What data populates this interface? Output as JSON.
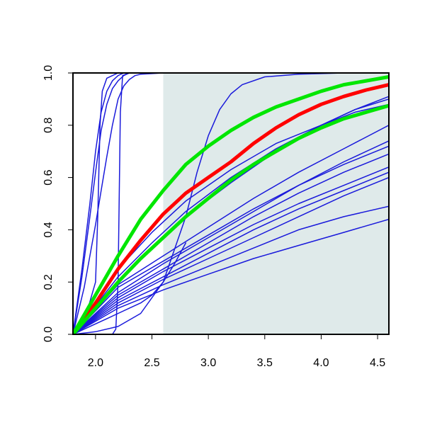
{
  "chart_data": {
    "type": "line",
    "title": "",
    "xlabel": "",
    "ylabel": "",
    "xlim": [
      1.8,
      4.6
    ],
    "ylim": [
      0,
      1
    ],
    "x_ticks": [
      2.0,
      2.5,
      3.0,
      3.5,
      4.0,
      4.5
    ],
    "x_tick_labels": [
      "2.0",
      "2.5",
      "3.0",
      "3.5",
      "4.0",
      "4.5"
    ],
    "y_ticks": [
      0,
      0.2,
      0.4,
      0.6,
      0.8,
      1.0
    ],
    "y_tick_labels": [
      "0.0",
      "0.2",
      "0.4",
      "0.6",
      "0.8",
      "1.0"
    ],
    "grid": false,
    "legend": "none",
    "shaded_region": {
      "x": [
        2.6,
        4.6
      ],
      "color": "#dfeaea"
    },
    "colors": {
      "blue": "#1a1adb",
      "red": "#ff0000",
      "green": "#00e600",
      "axis": "#000000"
    },
    "series": [
      {
        "color": "blue",
        "width": 1.5,
        "x": [
          1.8,
          1.88,
          1.95,
          2.0,
          2.05,
          2.1,
          2.15,
          2.2,
          2.25,
          2.3,
          2.4,
          2.6,
          4.6
        ],
        "y": [
          0.0,
          0.25,
          0.5,
          0.7,
          0.85,
          0.93,
          0.97,
          0.99,
          1.0,
          1.0,
          1.0,
          1.0,
          1.0
        ]
      },
      {
        "color": "blue",
        "width": 1.5,
        "x": [
          1.8,
          1.88,
          1.95,
          2.0,
          2.05,
          2.1,
          2.15,
          2.2,
          2.25,
          2.3,
          2.4,
          2.6,
          4.6
        ],
        "y": [
          0.0,
          0.22,
          0.45,
          0.62,
          0.78,
          0.88,
          0.94,
          0.97,
          0.99,
          1.0,
          1.0,
          1.0,
          1.0
        ]
      },
      {
        "color": "blue",
        "width": 1.5,
        "x": [
          1.8,
          1.9,
          2.0,
          2.05,
          2.1,
          2.15,
          2.2,
          2.25,
          2.3,
          2.35,
          2.4,
          2.6,
          4.6
        ],
        "y": [
          0.0,
          0.18,
          0.42,
          0.55,
          0.68,
          0.8,
          0.9,
          0.95,
          0.975,
          0.99,
          0.995,
          1.0,
          1.0
        ]
      },
      {
        "color": "blue",
        "width": 1.5,
        "x": [
          1.8,
          1.9,
          2.0,
          2.02,
          2.04,
          2.06,
          2.1,
          2.15,
          2.2,
          2.3,
          4.6
        ],
        "y": [
          0.0,
          0.05,
          0.2,
          0.45,
          0.8,
          0.93,
          0.98,
          0.99,
          1.0,
          1.0,
          1.0
        ]
      },
      {
        "color": "blue",
        "width": 1.5,
        "x": [
          1.8,
          2.0,
          2.15,
          2.18,
          2.2,
          2.22,
          2.24,
          2.3,
          4.6
        ],
        "y": [
          0.0,
          0.0,
          0.0,
          0.02,
          0.2,
          0.85,
          0.99,
          1.0,
          1.0
        ]
      },
      {
        "color": "blue",
        "width": 1.5,
        "x": [
          1.8,
          2.0,
          2.2,
          2.4,
          2.6,
          2.8,
          2.9,
          3.0,
          3.1,
          3.2,
          3.3,
          3.5,
          3.8,
          4.2,
          4.6
        ],
        "y": [
          0.0,
          0.01,
          0.03,
          0.08,
          0.2,
          0.45,
          0.62,
          0.76,
          0.86,
          0.92,
          0.955,
          0.985,
          0.995,
          1.0,
          1.0
        ]
      },
      {
        "color": "blue",
        "width": 1.5,
        "x": [
          1.8,
          2.2,
          2.5,
          2.8,
          3.2,
          3.6,
          4.0,
          4.3,
          4.6
        ],
        "y": [
          0.0,
          0.25,
          0.39,
          0.51,
          0.63,
          0.73,
          0.8,
          0.85,
          0.88
        ]
      },
      {
        "color": "blue",
        "width": 1.5,
        "x": [
          1.8,
          2.2,
          2.5,
          2.8,
          3.2,
          3.6,
          4.0,
          4.3,
          4.6
        ],
        "y": [
          0.0,
          0.22,
          0.35,
          0.47,
          0.6,
          0.71,
          0.8,
          0.86,
          0.9
        ]
      },
      {
        "color": "blue",
        "width": 1.5,
        "x": [
          1.8,
          2.2,
          2.5,
          2.8,
          3.2,
          3.6,
          4.0,
          4.3,
          4.6
        ],
        "y": [
          0.0,
          0.2,
          0.33,
          0.45,
          0.58,
          0.7,
          0.8,
          0.86,
          0.91
        ]
      },
      {
        "color": "blue",
        "width": 1.5,
        "x": [
          1.8,
          2.2,
          2.6,
          3.0,
          3.4,
          3.8,
          4.2,
          4.6
        ],
        "y": [
          0.0,
          0.19,
          0.3,
          0.41,
          0.52,
          0.62,
          0.71,
          0.8
        ]
      },
      {
        "color": "blue",
        "width": 1.5,
        "x": [
          1.8,
          2.2,
          2.6,
          3.0,
          3.4,
          3.8,
          4.2,
          4.6
        ],
        "y": [
          0.0,
          0.16,
          0.27,
          0.37,
          0.47,
          0.57,
          0.66,
          0.74
        ]
      },
      {
        "color": "blue",
        "width": 1.5,
        "x": [
          1.8,
          2.2,
          2.6,
          3.0,
          3.4,
          3.8,
          4.2,
          4.6
        ],
        "y": [
          0.0,
          0.18,
          0.28,
          0.38,
          0.48,
          0.57,
          0.65,
          0.72
        ]
      },
      {
        "color": "blue",
        "width": 1.5,
        "x": [
          1.8,
          2.2,
          2.6,
          3.0,
          3.4,
          3.8,
          4.2,
          4.6
        ],
        "y": [
          0.0,
          0.15,
          0.25,
          0.35,
          0.45,
          0.54,
          0.62,
          0.69
        ]
      },
      {
        "color": "blue",
        "width": 1.5,
        "x": [
          1.8,
          2.2,
          2.6,
          3.0,
          3.4,
          3.8,
          4.2,
          4.6
        ],
        "y": [
          0.0,
          0.14,
          0.24,
          0.33,
          0.42,
          0.5,
          0.57,
          0.64
        ]
      },
      {
        "color": "blue",
        "width": 1.5,
        "x": [
          1.8,
          2.2,
          2.6,
          3.0,
          3.4,
          3.8,
          4.2,
          4.6
        ],
        "y": [
          0.0,
          0.13,
          0.22,
          0.31,
          0.4,
          0.48,
          0.55,
          0.62
        ]
      },
      {
        "color": "blue",
        "width": 1.5,
        "x": [
          1.8,
          2.2,
          2.6,
          3.0,
          3.4,
          3.8,
          4.2,
          4.6
        ],
        "y": [
          0.0,
          0.12,
          0.21,
          0.29,
          0.37,
          0.45,
          0.53,
          0.6
        ]
      },
      {
        "color": "blue",
        "width": 1.5,
        "x": [
          1.8,
          2.2,
          2.6,
          3.0,
          3.4,
          3.8,
          4.2,
          4.6
        ],
        "y": [
          0.0,
          0.11,
          0.19,
          0.26,
          0.33,
          0.4,
          0.45,
          0.49
        ]
      },
      {
        "color": "blue",
        "width": 1.5,
        "x": [
          1.8,
          2.2,
          2.6,
          3.0,
          3.4,
          3.8,
          4.2,
          4.6
        ],
        "y": [
          0.0,
          0.1,
          0.17,
          0.23,
          0.29,
          0.34,
          0.39,
          0.44
        ]
      },
      {
        "color": "blue",
        "width": 1.5,
        "x": [
          1.8,
          1.95,
          2.1,
          2.2,
          2.3,
          2.4,
          2.5,
          2.6,
          2.7,
          2.8
        ],
        "y": [
          0.0,
          0.03,
          0.06,
          0.08,
          0.1,
          0.12,
          0.15,
          0.2,
          0.27,
          0.35
        ]
      },
      {
        "color": "red",
        "width": 5,
        "x": [
          1.8,
          2.0,
          2.2,
          2.4,
          2.6,
          2.8,
          3.0,
          3.2,
          3.4,
          3.6,
          3.8,
          4.0,
          4.2,
          4.4,
          4.6
        ],
        "y": [
          0.0,
          0.12,
          0.25,
          0.36,
          0.46,
          0.54,
          0.6,
          0.66,
          0.73,
          0.79,
          0.84,
          0.88,
          0.91,
          0.935,
          0.955
        ]
      },
      {
        "color": "green",
        "width": 5,
        "x": [
          1.8,
          2.0,
          2.2,
          2.4,
          2.6,
          2.8,
          3.0,
          3.2,
          3.4,
          3.6,
          3.8,
          4.0,
          4.2,
          4.4,
          4.6
        ],
        "y": [
          0.0,
          0.15,
          0.3,
          0.44,
          0.55,
          0.65,
          0.72,
          0.78,
          0.83,
          0.87,
          0.9,
          0.93,
          0.955,
          0.97,
          0.985
        ]
      },
      {
        "color": "green",
        "width": 5,
        "x": [
          1.8,
          2.0,
          2.2,
          2.4,
          2.6,
          2.8,
          3.0,
          3.2,
          3.4,
          3.6,
          3.8,
          4.0,
          4.2,
          4.4,
          4.6
        ],
        "y": [
          0.0,
          0.1,
          0.2,
          0.29,
          0.37,
          0.45,
          0.52,
          0.59,
          0.65,
          0.7,
          0.75,
          0.79,
          0.825,
          0.85,
          0.875
        ]
      }
    ]
  }
}
